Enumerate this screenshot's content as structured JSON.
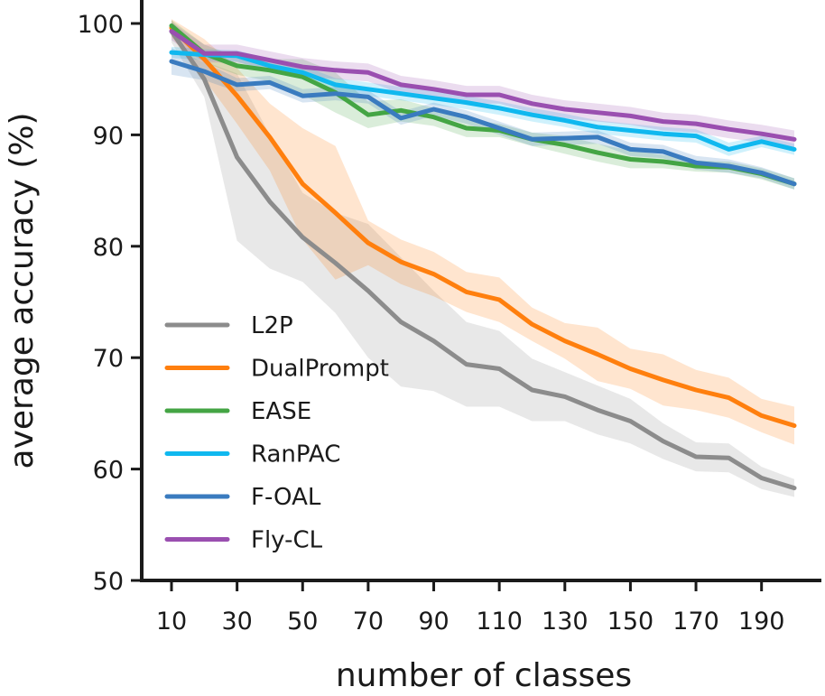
{
  "chart_data": {
    "type": "line",
    "title": "",
    "xlabel": "number of classes",
    "ylabel": "average accuracy (%)",
    "xlim": [
      10,
      200
    ],
    "ylim": [
      50,
      100
    ],
    "xticks": [
      10,
      30,
      50,
      70,
      90,
      110,
      130,
      150,
      170,
      190
    ],
    "yticks": [
      50,
      60,
      70,
      80,
      90,
      100
    ],
    "legend_position": "center-left",
    "x": [
      10,
      20,
      30,
      40,
      50,
      60,
      70,
      80,
      90,
      100,
      110,
      120,
      130,
      140,
      150,
      160,
      170,
      180,
      190,
      200
    ],
    "series": [
      {
        "name": "L2P",
        "color": "#8c8c8c",
        "values": [
          99.3,
          95.0,
          88.0,
          84.0,
          80.8,
          78.5,
          76.0,
          73.2,
          71.5,
          69.4,
          69.0,
          67.1,
          66.5,
          65.3,
          64.3,
          62.5,
          61.1,
          61.0,
          59.2,
          58.3
        ],
        "band": [
          1.0,
          1.6,
          7.5,
          6.0,
          4.0,
          4.5,
          6.0,
          5.8,
          4.5,
          3.8,
          3.4,
          2.8,
          2.2,
          2.2,
          2.0,
          1.6,
          1.3,
          1.3,
          1.0,
          0.8
        ]
      },
      {
        "name": "DualPrompt",
        "color": "#ff7f0e",
        "values": [
          99.6,
          96.8,
          93.5,
          89.8,
          85.6,
          83.0,
          80.3,
          78.6,
          77.5,
          75.9,
          75.2,
          73.0,
          71.5,
          70.3,
          69.0,
          68.0,
          67.1,
          66.4,
          64.8,
          63.9
        ],
        "band": [
          0.8,
          1.8,
          2.5,
          3.0,
          5.0,
          6.0,
          2.0,
          2.0,
          2.0,
          1.8,
          2.0,
          1.5,
          1.6,
          2.4,
          1.8,
          2.3,
          1.8,
          1.8,
          1.5,
          1.7
        ]
      },
      {
        "name": "EASE",
        "color": "#44a544",
        "values": [
          99.8,
          97.3,
          96.2,
          95.8,
          95.2,
          93.8,
          91.8,
          92.2,
          91.6,
          90.6,
          90.4,
          89.6,
          89.1,
          88.4,
          87.8,
          87.6,
          87.2,
          87.1,
          86.5,
          85.6
        ],
        "band": [
          0.5,
          0.8,
          0.8,
          1.0,
          1.6,
          1.8,
          1.2,
          1.0,
          0.8,
          0.8,
          0.6,
          0.6,
          0.8,
          0.8,
          0.8,
          0.6,
          0.5,
          0.5,
          0.5,
          0.5
        ]
      },
      {
        "name": "RanPAC",
        "color": "#10b8ef",
        "values": [
          97.4,
          97.2,
          97.1,
          96.2,
          95.6,
          94.5,
          94.1,
          93.7,
          93.3,
          92.9,
          92.4,
          91.8,
          91.3,
          90.7,
          90.4,
          90.1,
          89.9,
          88.7,
          89.4,
          88.7
        ],
        "band": [
          0.5,
          0.5,
          0.5,
          0.6,
          0.6,
          0.6,
          0.6,
          0.6,
          0.6,
          0.6,
          0.6,
          0.6,
          0.6,
          0.6,
          0.6,
          0.6,
          0.6,
          0.6,
          0.5,
          0.5
        ]
      },
      {
        "name": "F-OAL",
        "color": "#3a7bbf",
        "values": [
          96.6,
          95.7,
          94.5,
          94.7,
          93.5,
          93.7,
          93.4,
          91.5,
          92.3,
          91.6,
          90.6,
          89.6,
          89.7,
          89.8,
          88.7,
          88.5,
          87.5,
          87.2,
          86.6,
          85.6
        ],
        "band": [
          1.2,
          0.8,
          0.6,
          0.6,
          0.6,
          0.6,
          0.6,
          0.6,
          0.6,
          0.6,
          0.6,
          0.6,
          0.6,
          0.6,
          0.6,
          0.6,
          0.6,
          0.6,
          0.5,
          0.5
        ]
      },
      {
        "name": "Fly-CL",
        "color": "#9a4fb0",
        "values": [
          99.3,
          97.3,
          97.3,
          96.7,
          96.1,
          95.8,
          95.6,
          94.5,
          94.1,
          93.6,
          93.6,
          92.8,
          92.3,
          92.0,
          91.7,
          91.2,
          91.0,
          90.5,
          90.1,
          89.6
        ],
        "band": [
          0.8,
          0.8,
          0.8,
          0.8,
          0.8,
          0.8,
          0.8,
          0.8,
          0.8,
          0.8,
          0.8,
          0.8,
          0.8,
          0.8,
          0.8,
          0.8,
          0.8,
          0.8,
          0.8,
          0.8
        ]
      }
    ]
  }
}
